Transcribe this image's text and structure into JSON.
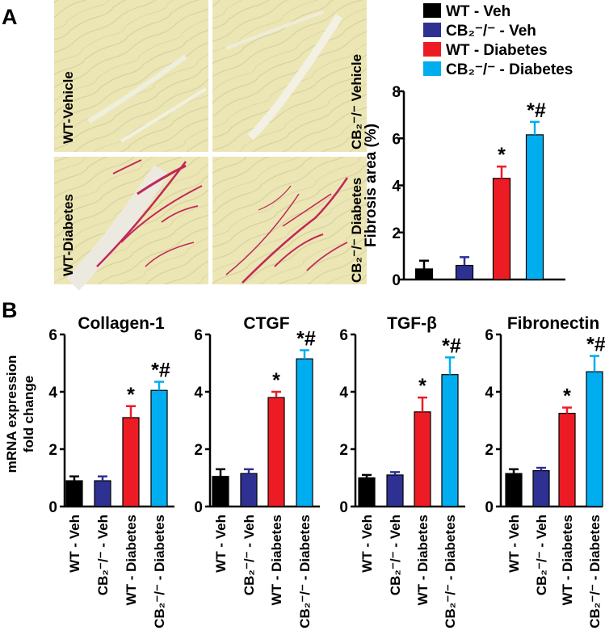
{
  "panels": {
    "a": "A",
    "b": "B"
  },
  "colors": {
    "wt_veh": "#000000",
    "cb2_veh": "#2e3192",
    "wt_diabetes": "#ed1c24",
    "cb2_diabetes": "#00aeef",
    "tissue": "#ece6b4",
    "stain": "#c0285a"
  },
  "micrographs": [
    {
      "label": "WT-Vehicle",
      "stained": false
    },
    {
      "label": "CB₂⁻/⁻ Vehicle",
      "stained": false
    },
    {
      "label": "WT-Diabetes",
      "stained": true
    },
    {
      "label": "CB₂⁻/⁻ Diabetes",
      "stained": true
    }
  ],
  "legend": [
    {
      "label": "WT - Veh",
      "color_key": "wt_veh"
    },
    {
      "label": "CB₂⁻/⁻ - Veh",
      "color_key": "cb2_veh"
    },
    {
      "label": "WT - Diabetes",
      "color_key": "wt_diabetes"
    },
    {
      "label": "CB₂⁻/⁻ - Diabetes",
      "color_key": "cb2_diabetes"
    }
  ],
  "chart_data": [
    {
      "type": "bar",
      "title": "",
      "ylabel": "Fibrosis area (%)",
      "xlabel": "",
      "ylim": [
        0,
        8
      ],
      "yticks": [
        0,
        2,
        4,
        6,
        8
      ],
      "categories": [
        "WT - Veh",
        "CB₂⁻/⁻ - Veh",
        "WT - Diabetes",
        "CB₂⁻/⁻ - Diabetes"
      ],
      "values": [
        0.45,
        0.6,
        4.3,
        6.15
      ],
      "errors": [
        0.35,
        0.35,
        0.5,
        0.55
      ],
      "annotations": [
        "",
        "",
        "*",
        "*#"
      ]
    },
    {
      "type": "bar",
      "title": "Collagen-1",
      "ylabel": "mRNA expression fold change",
      "ylim": [
        0,
        6
      ],
      "yticks": [
        0,
        2,
        4,
        6
      ],
      "categories": [
        "WT - Veh",
        "CB₂⁻/⁻ - Veh",
        "WT - Diabetes",
        "CB₂⁻/⁻ - Diabetes"
      ],
      "values": [
        0.9,
        0.9,
        3.1,
        4.05
      ],
      "errors": [
        0.15,
        0.15,
        0.4,
        0.3
      ],
      "annotations": [
        "",
        "",
        "*",
        "*#"
      ]
    },
    {
      "type": "bar",
      "title": "CTGF",
      "ylabel": "",
      "ylim": [
        0,
        6
      ],
      "yticks": [
        0,
        2,
        4,
        6
      ],
      "categories": [
        "WT - Veh",
        "CB₂⁻/⁻ - Veh",
        "WT - Diabetes",
        "CB₂⁻/⁻ - Diabetes"
      ],
      "values": [
        1.05,
        1.15,
        3.8,
        5.15
      ],
      "errors": [
        0.25,
        0.15,
        0.2,
        0.3
      ],
      "annotations": [
        "",
        "",
        "*",
        "*#"
      ]
    },
    {
      "type": "bar",
      "title": "TGF-β",
      "ylabel": "",
      "ylim": [
        0,
        6
      ],
      "yticks": [
        0,
        2,
        4,
        6
      ],
      "categories": [
        "WT - Veh",
        "CB₂⁻/⁻ - Veh",
        "WT - Diabetes",
        "CB₂⁻/⁻ - Diabetes"
      ],
      "values": [
        1.0,
        1.1,
        3.3,
        4.6
      ],
      "errors": [
        0.1,
        0.1,
        0.5,
        0.6
      ],
      "annotations": [
        "",
        "",
        "*",
        "*#"
      ]
    },
    {
      "type": "bar",
      "title": "Fibronectin",
      "ylabel": "",
      "ylim": [
        0,
        6
      ],
      "yticks": [
        0,
        2,
        4,
        6
      ],
      "categories": [
        "WT - Veh",
        "CB₂⁻/⁻ - Veh",
        "WT - Diabetes",
        "CB₂⁻/⁻ - Diabetes"
      ],
      "values": [
        1.15,
        1.25,
        3.25,
        4.7
      ],
      "errors": [
        0.15,
        0.1,
        0.2,
        0.55
      ],
      "annotations": [
        "",
        "",
        "*",
        "*#"
      ]
    }
  ]
}
